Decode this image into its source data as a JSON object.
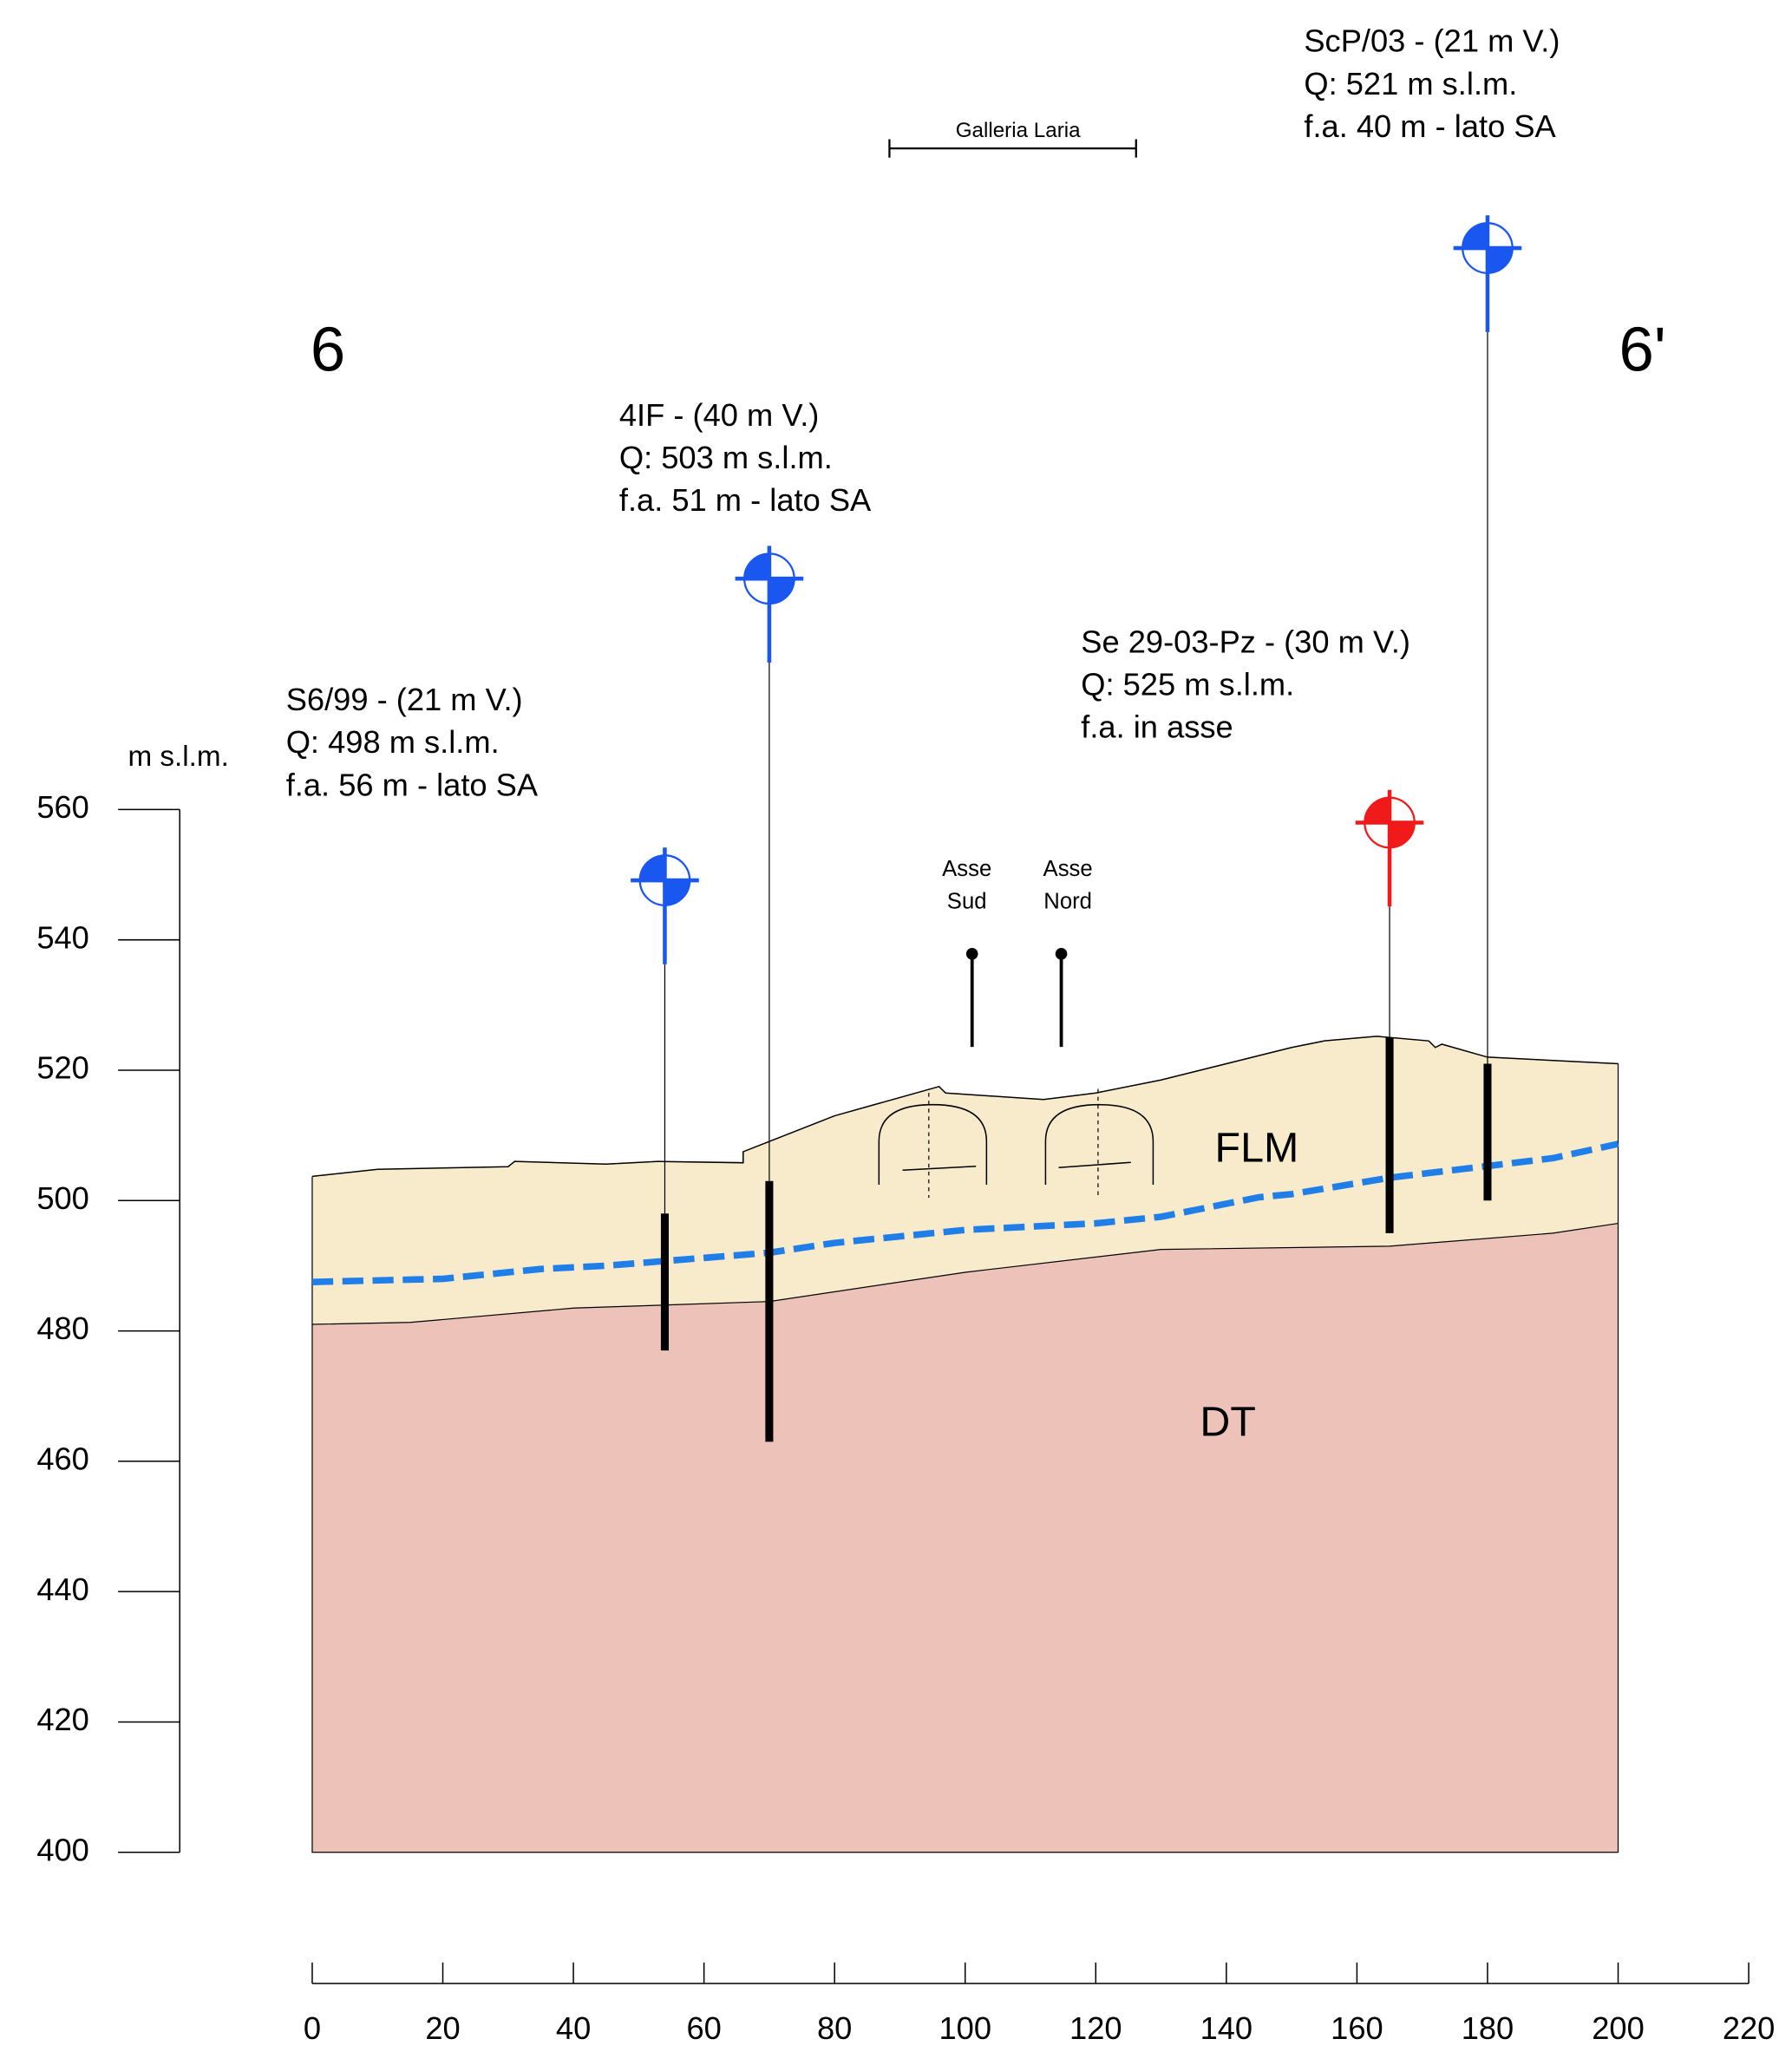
{
  "chart_data": {
    "type": "cross-section",
    "section_start": "6",
    "section_end": "6'",
    "tunnel_label": "Galleria Laria",
    "axis_labels": [
      [
        "Asse",
        "Sud"
      ],
      [
        "Asse",
        "Nord"
      ]
    ],
    "ylabel": "m s.l.m.",
    "ylim": [
      400,
      560
    ],
    "yticks": [
      400,
      420,
      440,
      460,
      480,
      500,
      520,
      540,
      560
    ],
    "xlim": [
      0,
      220
    ],
    "xticks": [
      0,
      20,
      40,
      60,
      80,
      100,
      120,
      140,
      160,
      180,
      200,
      220
    ],
    "layers": [
      {
        "name": "FLM",
        "color": "#f8ebcb"
      },
      {
        "name": "DT",
        "color": "#edc2b8"
      }
    ],
    "surface": {
      "x": [
        0,
        10,
        30,
        31,
        45,
        53,
        66,
        66,
        80,
        96,
        97,
        112,
        120,
        130,
        150,
        155,
        163,
        171,
        172,
        173,
        180,
        200
      ],
      "y": [
        503.7,
        504.8,
        505.2,
        506,
        505.6,
        506,
        505.8,
        507.5,
        513,
        517.5,
        516.5,
        515.5,
        516.5,
        518.5,
        523.5,
        524.5,
        525.2,
        524.5,
        523.5,
        524,
        522,
        521
      ]
    },
    "dt_top": {
      "x": [
        0,
        15,
        40,
        70,
        100,
        130,
        165,
        190,
        200
      ],
      "y": [
        481,
        481.3,
        483.5,
        484.5,
        489,
        492.5,
        493,
        495,
        496.5
      ]
    },
    "water_table": {
      "color": "#1f7ee8",
      "x": [
        0,
        20,
        35,
        45,
        55,
        70,
        80,
        100,
        120,
        130,
        145,
        150,
        165,
        180,
        190,
        200
      ],
      "y": [
        487.5,
        488,
        489.5,
        490,
        490.8,
        492,
        493.5,
        495.5,
        496.5,
        497.5,
        500.5,
        501,
        503.5,
        505.3,
        506.5,
        508.7
      ]
    },
    "boreholes": [
      {
        "label": [
          "S6/99 - (21 m V.)",
          "Q: 498 m s.l.m.",
          "f.a. 56 m - lato SA"
        ],
        "x": 54,
        "top": 498,
        "bottom": 477,
        "color": "#1a56f0"
      },
      {
        "label": [
          "4IF - (40 m V.)",
          "Q: 503 m s.l.m.",
          "f.a. 51 m - lato SA"
        ],
        "x": 70,
        "top": 503,
        "bottom": 463,
        "color": "#1a56f0"
      },
      {
        "label": [
          "Se 29-03-Pz - (30 m V.)",
          "Q: 525 m s.l.m.",
          "f.a. in asse"
        ],
        "x": 165,
        "top": 525,
        "bottom": 495,
        "color": "#f01a1a"
      },
      {
        "label": [
          "ScP/03 - (21 m V.)",
          "Q: 521 m s.l.m.",
          "f.a. 40 m - lato SA"
        ],
        "x": 180,
        "top": 521,
        "bottom": 500,
        "color": "#1a56f0"
      }
    ]
  }
}
